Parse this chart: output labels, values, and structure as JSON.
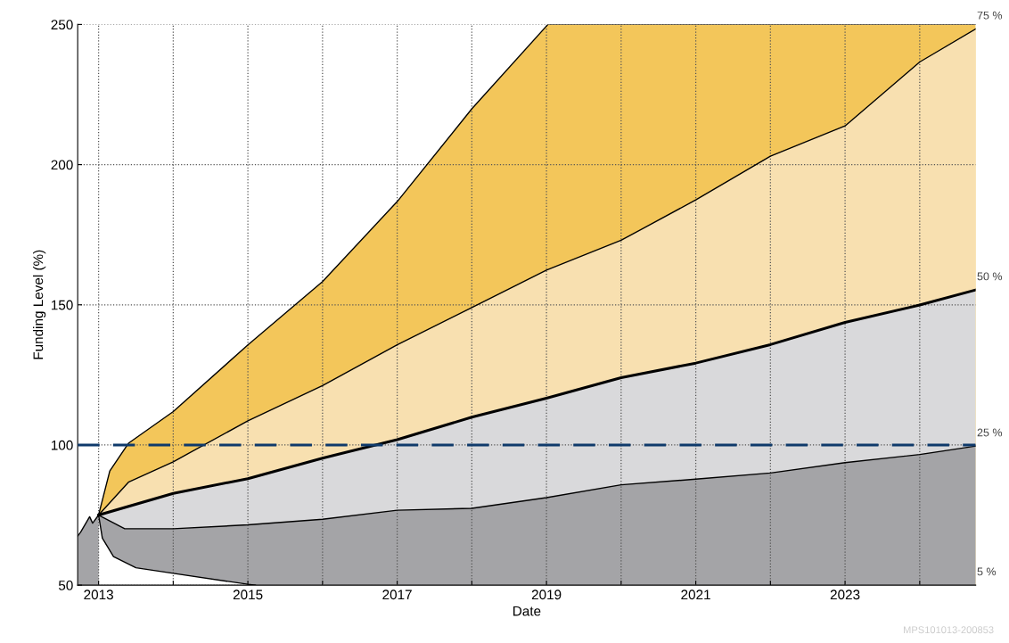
{
  "chart_data": {
    "type": "area",
    "xlabel": "Date",
    "ylabel": "Funding Level (%)",
    "xlim": [
      2012.72,
      2024.75
    ],
    "ylim": [
      50,
      250
    ],
    "xticks": [
      2013,
      {
        "value": 2014,
        "label": null
      },
      2015,
      {
        "value": 2016,
        "label": null
      },
      2017,
      {
        "value": 2018,
        "label": null
      },
      2019,
      {
        "value": 2020,
        "label": null
      },
      2021,
      {
        "value": 2022,
        "label": null
      },
      2023,
      {
        "value": 2024,
        "label": null
      }
    ],
    "yticks": [
      50,
      100,
      150,
      200,
      250
    ],
    "grid": true,
    "legend": false,
    "series": [
      {
        "color": "#f3c65a",
        "x": [
          2013,
          2013.15,
          2013.4,
          2014,
          2015,
          2016,
          2017,
          2018,
          2019.02,
          2020,
          2021,
          2022,
          2023,
          2024,
          2024.75
        ],
        "values": [
          75,
          90.7,
          100.6,
          111.9,
          135.7,
          158.3,
          186.8,
          219.9,
          250,
          250,
          250,
          250,
          250,
          250,
          250
        ]
      },
      {
        "name": "75 %",
        "color": "#f8e0b0",
        "x": [
          2013,
          2013.4,
          2014,
          2015,
          2016,
          2017,
          2018,
          2019,
          2020,
          2021,
          2022,
          2023,
          2024,
          2024.75
        ],
        "values": [
          75,
          86.7,
          94,
          108.6,
          121.2,
          135.7,
          149,
          162.4,
          173,
          187.4,
          203,
          213.8,
          236.6,
          248.4
        ]
      },
      {
        "name": "50 %",
        "color": "#d9d9db",
        "x": [
          2013,
          2014,
          2015,
          2016,
          2017,
          2018,
          2019,
          2020,
          2021,
          2022,
          2023,
          2024,
          2024.75
        ],
        "values": [
          75,
          82.7,
          88,
          95.3,
          101.9,
          109.9,
          116.7,
          124,
          129.2,
          135.8,
          143.7,
          149.9,
          155.3
        ]
      },
      {
        "name": "25 %",
        "color": "#a4a4a7",
        "x": [
          2012.72,
          2012.76,
          2012.88,
          2012.92,
          2013,
          2013.35,
          2014,
          2015,
          2016,
          2017,
          2018,
          2019,
          2020,
          2021,
          2022,
          2023,
          2024,
          2024.75
        ],
        "values": [
          67.5,
          68.9,
          74.4,
          72.1,
          75,
          70.1,
          70.1,
          71.5,
          73.5,
          76.7,
          77.4,
          81.2,
          85.8,
          87.8,
          90,
          93.7,
          96.6,
          99.6
        ]
      },
      {
        "name": "5 %",
        "color": "#ffffff",
        "x": [
          2013,
          2013.05,
          2013.2,
          2013.5,
          2014,
          2015,
          2015.1
        ],
        "values": [
          75,
          66.8,
          60.2,
          56.2,
          54.2,
          50.3,
          50
        ]
      }
    ],
    "ref_lines": [
      {
        "axis": "y",
        "value": 100,
        "color": "#0f3a6b",
        "line_style": "dashed"
      }
    ],
    "annotations": [
      "MPS101013-200853"
    ]
  }
}
